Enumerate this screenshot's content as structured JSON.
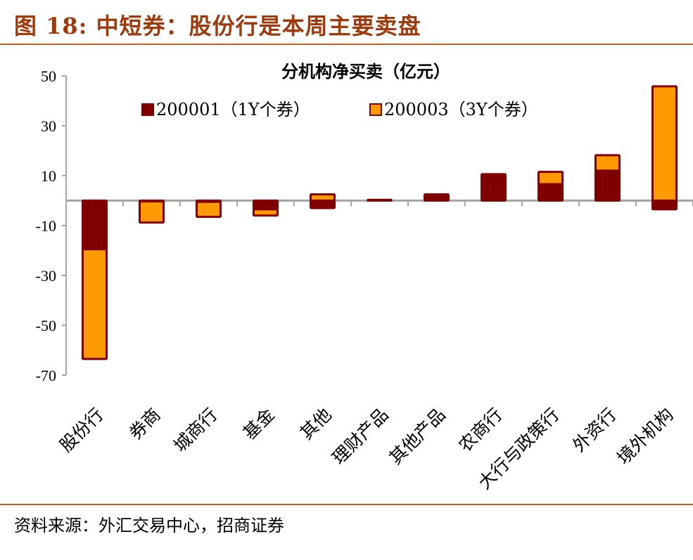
{
  "figure_title": "图 18:  中短券：股份行是本周主要卖盘",
  "source": "资料来源：外汇交易中心，招商证券",
  "colors": {
    "series1": "#800000",
    "series2": "#FF9900",
    "title": "#9E3A0C",
    "rule": "#C0601F",
    "axis": "#A6A6A6"
  },
  "chart_data": {
    "type": "bar",
    "stacked": true,
    "title": "分机构净买卖（亿元）",
    "xlabel": "",
    "ylabel": "",
    "ylim": [
      -70,
      50
    ],
    "yticks": [
      50,
      30,
      10,
      -10,
      -30,
      -50,
      -70
    ],
    "grid": false,
    "legend_position": "top",
    "categories": [
      "股份行",
      "券商",
      "城商行",
      "基金",
      "其他",
      "理财产品",
      "其他产品",
      "农商行",
      "大行与政策行",
      "外资行",
      "境外机构"
    ],
    "series": [
      {
        "name": "200001（1Y个券）",
        "values": [
          -19.5,
          -0.3,
          -0.5,
          -3.5,
          -3.0,
          0.3,
          2.5,
          9.8,
          6.6,
          12.0,
          -3.5
        ]
      },
      {
        "name": "200003（3Y个券）",
        "values": [
          -44.0,
          -8.5,
          -6.0,
          -2.5,
          2.5,
          0,
          0,
          0.8,
          4.9,
          6.2,
          45.8
        ]
      }
    ]
  }
}
